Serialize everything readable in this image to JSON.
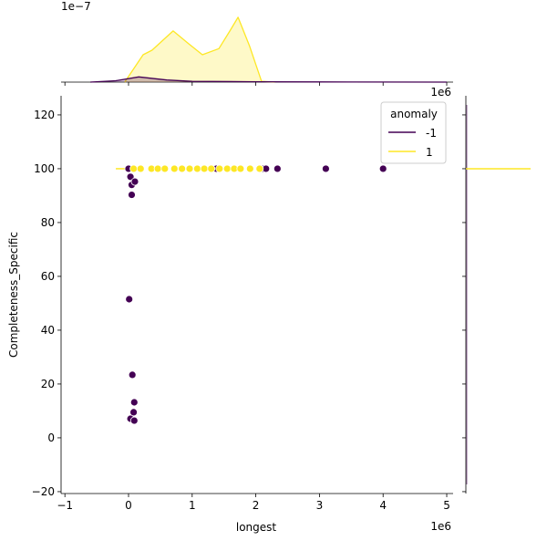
{
  "chart_data": {
    "type": "scatter",
    "subtype": "jointplot with marginal KDE",
    "xlabel": "longest",
    "ylabel": "Completeness_Specific",
    "x_offset_label": "1e6",
    "top_marginal_offset_label": "1e−7",
    "right_marginal_offset_label": "1e6",
    "xlim": [
      -1.06,
      5.1
    ],
    "ylim": [
      -20.7,
      127.1
    ],
    "xticks": [
      "−1",
      "0",
      "1",
      "2",
      "3",
      "4",
      "5"
    ],
    "xtick_values": [
      -1,
      0,
      1,
      2,
      3,
      4,
      5
    ],
    "yticks": [
      "−20",
      "0",
      "20",
      "40",
      "60",
      "80",
      "100",
      "120"
    ],
    "ytick_values": [
      -20,
      0,
      20,
      40,
      60,
      80,
      100,
      120
    ],
    "grid": false,
    "legend": {
      "title": "anomaly",
      "placement": "top-right"
    },
    "series": [
      {
        "name": "-1",
        "color": "#440154",
        "points": [
          [
            0.0,
            100
          ],
          [
            0.03,
            97
          ],
          [
            0.05,
            94
          ],
          [
            0.1,
            95.2
          ],
          [
            0.05,
            90.3
          ],
          [
            0.01,
            51.5
          ],
          [
            0.06,
            23.4
          ],
          [
            0.09,
            13.2
          ],
          [
            0.08,
            9.5
          ],
          [
            0.03,
            7.1
          ],
          [
            0.09,
            6.4
          ],
          [
            1.38,
            100
          ],
          [
            2.12,
            100
          ],
          [
            2.16,
            100
          ],
          [
            2.34,
            100
          ],
          [
            3.1,
            100
          ],
          [
            4.0,
            100
          ]
        ],
        "kde_x": [
          [
            -0.6,
            0
          ],
          [
            -0.2,
            0.08
          ],
          [
            0.16,
            0.3
          ],
          [
            0.6,
            0.12
          ],
          [
            1.0,
            0.04
          ],
          [
            2.0,
            0.02
          ],
          [
            3.0,
            0.01
          ],
          [
            5.0,
            0
          ]
        ]
      },
      {
        "name": "1",
        "color": "#fde725",
        "points": [
          [
            0.08,
            100
          ],
          [
            0.19,
            100
          ],
          [
            0.36,
            100
          ],
          [
            0.46,
            100
          ],
          [
            0.57,
            100
          ],
          [
            0.72,
            100
          ],
          [
            0.84,
            100
          ],
          [
            0.96,
            100
          ],
          [
            1.08,
            100
          ],
          [
            1.19,
            100
          ],
          [
            1.3,
            100
          ],
          [
            1.43,
            100
          ],
          [
            1.55,
            100
          ],
          [
            1.66,
            100
          ],
          [
            1.76,
            100
          ],
          [
            1.91,
            100
          ],
          [
            2.06,
            100
          ]
        ],
        "kde_x": [
          [
            -0.06,
            0
          ],
          [
            0.23,
            1.58
          ],
          [
            0.37,
            1.84
          ],
          [
            0.7,
            2.95
          ],
          [
            0.95,
            2.2
          ],
          [
            1.16,
            1.58
          ],
          [
            1.42,
            1.93
          ],
          [
            1.6,
            3.0
          ],
          [
            1.72,
            3.74
          ],
          [
            1.9,
            2.1
          ],
          [
            2.09,
            0.04
          ],
          [
            2.3,
            0
          ]
        ]
      }
    ],
    "top_marginal_ylim": [
      0,
      4.0
    ]
  }
}
